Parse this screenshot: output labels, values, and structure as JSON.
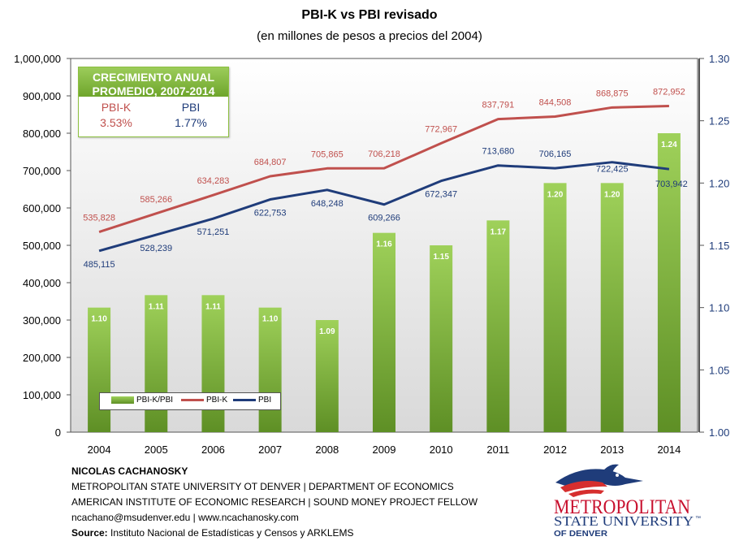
{
  "title": "PBI-K vs PBI revisado",
  "subtitle": "(en millones de pesos a precios del 2004)",
  "chart_data": {
    "type": "bar+line",
    "categories": [
      "2004",
      "2005",
      "2006",
      "2007",
      "2008",
      "2009",
      "2010",
      "2011",
      "2012",
      "2013",
      "2014"
    ],
    "left_axis": {
      "min": 0,
      "max": 1000000,
      "ticks": [
        "0",
        "100,000",
        "200,000",
        "300,000",
        "400,000",
        "500,000",
        "600,000",
        "700,000",
        "800,000",
        "900,000",
        "1,000,000"
      ]
    },
    "right_axis": {
      "min": 1.0,
      "max": 1.3,
      "ticks": [
        "1.00",
        "1.05",
        "1.10",
        "1.15",
        "1.20",
        "1.25",
        "1.30"
      ]
    },
    "series": [
      {
        "name": "PBI-K/PBI",
        "type": "bar",
        "axis": "right",
        "color": "#8dc63f",
        "values": [
          1.1,
          1.11,
          1.11,
          1.1,
          1.09,
          1.16,
          1.15,
          1.17,
          1.2,
          1.2,
          1.24
        ],
        "labels": [
          "1.10",
          "1.11",
          "1.11",
          "1.10",
          "1.09",
          "1.16",
          "1.15",
          "1.17",
          "1.20",
          "1.20",
          "1.24"
        ]
      },
      {
        "name": "PBI-K",
        "type": "line",
        "axis": "left",
        "color": "#c0504d",
        "values": [
          535828,
          585266,
          634283,
          684807,
          705865,
          706218,
          772967,
          837791,
          844508,
          868875,
          872952
        ],
        "labels": [
          "535,828",
          "585,266",
          "634,283",
          "684,807",
          "705,865",
          "706,218",
          "772,967",
          "837,791",
          "844,508",
          "868,875",
          "872,952"
        ]
      },
      {
        "name": "PBI",
        "type": "line",
        "axis": "left",
        "color": "#1f3c7a",
        "values": [
          485115,
          528239,
          571251,
          622753,
          648248,
          609266,
          672347,
          713680,
          706165,
          722425,
          703942
        ],
        "labels": [
          "485,115",
          "528,239",
          "571,251",
          "622,753",
          "648,248",
          "609,266",
          "672,347",
          "713,680",
          "706,165",
          "722,425",
          "703,942"
        ]
      }
    ],
    "legend": [
      "PBI-K/PBI",
      "PBI-K",
      "PBI"
    ],
    "legend_position": "bottom-left"
  },
  "growth_box": {
    "title_line1": "CRECIMIENTO ANUAL",
    "title_line2": "PROMEDIO, 2007-2014",
    "col1_label": "PBI-K",
    "col1_value": "3.53%",
    "col2_label": "PBI",
    "col2_value": "1.77%"
  },
  "footer": {
    "name": "NICOLAS CACHANOSKY",
    "line2": "METROPOLITAN STATE UNIVERSITY OT DENVER | DEPARTMENT OF ECONOMICS",
    "line3": "AMERICAN INSTITUTE OF ECONOMIC RESEARCH | SOUND MONEY PROJECT FELLOW",
    "line4": "ncachano@msudenver.edu  |  www.ncachanosky.com",
    "source_label": "Source:",
    "source_text": " Instituto Nacional de Estadísticas y Censos  y ARKLEMS"
  },
  "logo": {
    "line1": "METROPOLITAN",
    "line2": "STATE UNIVERSITY",
    "tm": "™",
    "line3": "OF DENVER",
    "icon": "roadrunner-icon"
  }
}
